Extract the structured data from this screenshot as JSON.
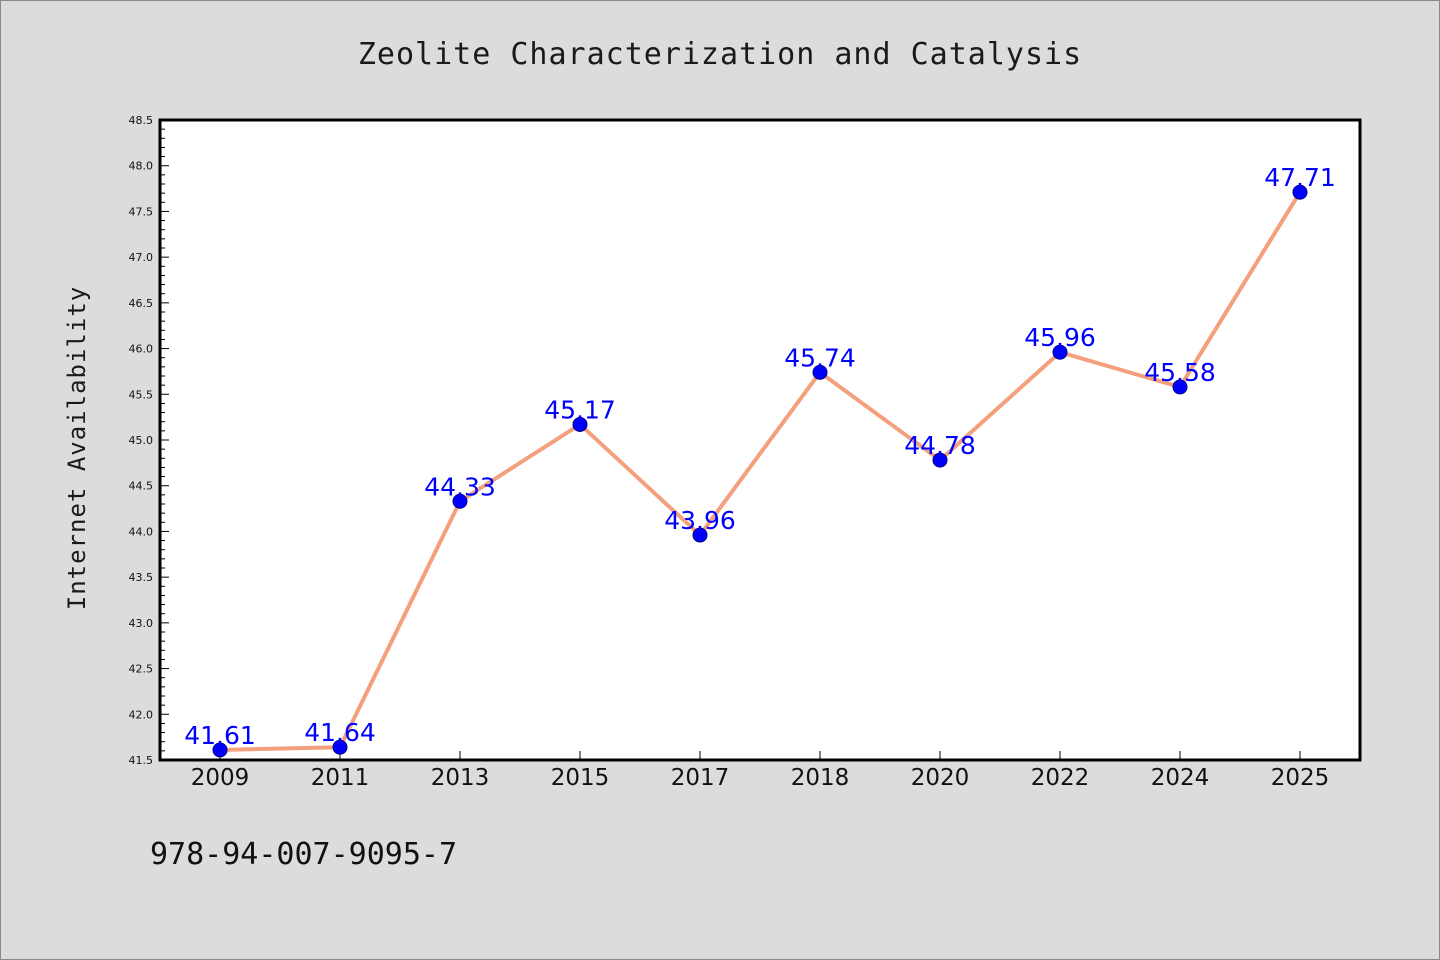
{
  "chart_data": {
    "type": "line",
    "title": "Zeolite Characterization and Catalysis",
    "ylabel": "Internet Availability",
    "xlabel": "",
    "categories": [
      "2009",
      "2011",
      "2013",
      "2015",
      "2017",
      "2018",
      "2020",
      "2022",
      "2024",
      "2025"
    ],
    "series": [
      {
        "values": [
          41.61,
          41.64,
          44.33,
          45.17,
          43.96,
          45.74,
          44.78,
          45.96,
          45.58,
          47.71
        ],
        "data_labels": [
          "41.61",
          "41.64",
          "44.33",
          "45.17",
          "43.96",
          "45.74",
          "44.78",
          "45.96",
          "45.58",
          "47.71"
        ]
      }
    ],
    "ylim": [
      41.5,
      48.5
    ],
    "y_ticks": [
      "41.5",
      "42.0",
      "42.5",
      "43.0",
      "43.5",
      "44.0",
      "44.5",
      "45.0",
      "45.5",
      "46.0",
      "46.5",
      "47.0",
      "47.5",
      "48.0",
      "48.5"
    ],
    "grid": false,
    "legend": "none",
    "colors": {
      "line": "#f4a07c",
      "marker": "#0000ff",
      "marker_edge": "#00008b",
      "data_label": "#0000ff",
      "background": "#dcdcdc",
      "plot_background": "#ffffff"
    }
  },
  "footer": {
    "isbn": "978-94-007-9095-7"
  }
}
